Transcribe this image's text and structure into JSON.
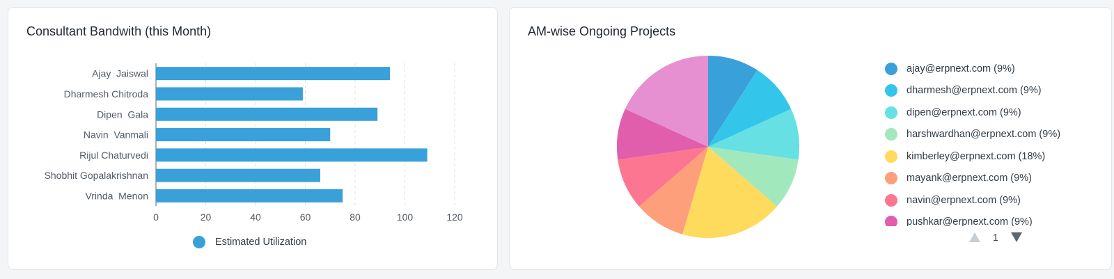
{
  "bandwidth_card": {
    "title": "Consultant Bandwith (this Month)",
    "legend_label": "Estimated Utilization",
    "bar_color": "#39a0da"
  },
  "projects_card": {
    "title": "AM-wise Ongoing Projects",
    "page_number": "1"
  },
  "chart_data": [
    {
      "type": "bar",
      "orientation": "horizontal",
      "title": "Consultant Bandwith (this Month)",
      "categories": [
        "Ajay  Jaiswal",
        "Dharmesh Chitroda",
        "Dipen  Gala",
        "Navin  Vanmali",
        "Rijul Chaturvedi",
        "Shobhit Gopalakrishnan",
        "Vrinda  Menon"
      ],
      "series": [
        {
          "name": "Estimated Utilization",
          "values": [
            94,
            59,
            89,
            70,
            109,
            66,
            75
          ],
          "color": "#39a0da"
        }
      ],
      "xlim": [
        0,
        120
      ],
      "xticks": [
        0,
        20,
        40,
        60,
        80,
        100,
        120
      ],
      "grid": "vertical dashed",
      "legend_position": "bottom"
    },
    {
      "type": "pie",
      "title": "AM-wise Ongoing Projects",
      "slices": [
        {
          "label": "ajay@erpnext.com (9%)",
          "value": 9,
          "color": "#39a0da"
        },
        {
          "label": "dharmesh@erpnext.com (9%)",
          "value": 9,
          "color": "#33c6ea"
        },
        {
          "label": "dipen@erpnext.com (9%)",
          "value": 9,
          "color": "#66e0e3"
        },
        {
          "label": "harshwardhan@erpnext.com (9%)",
          "value": 9,
          "color": "#a2e8bd"
        },
        {
          "label": "kimberley@erpnext.com (18%)",
          "value": 18,
          "color": "#feda5d"
        },
        {
          "label": "mayank@erpnext.com (9%)",
          "value": 9,
          "color": "#fe9f7b"
        },
        {
          "label": "navin@erpnext.com (9%)",
          "value": 9,
          "color": "#fd7691"
        },
        {
          "label": "pushkar@erpnext.com (9%)",
          "value": 9,
          "color": "#e05eac"
        },
        {
          "value": 18,
          "color": "#e690d1"
        }
      ],
      "legend_position": "right"
    }
  ]
}
